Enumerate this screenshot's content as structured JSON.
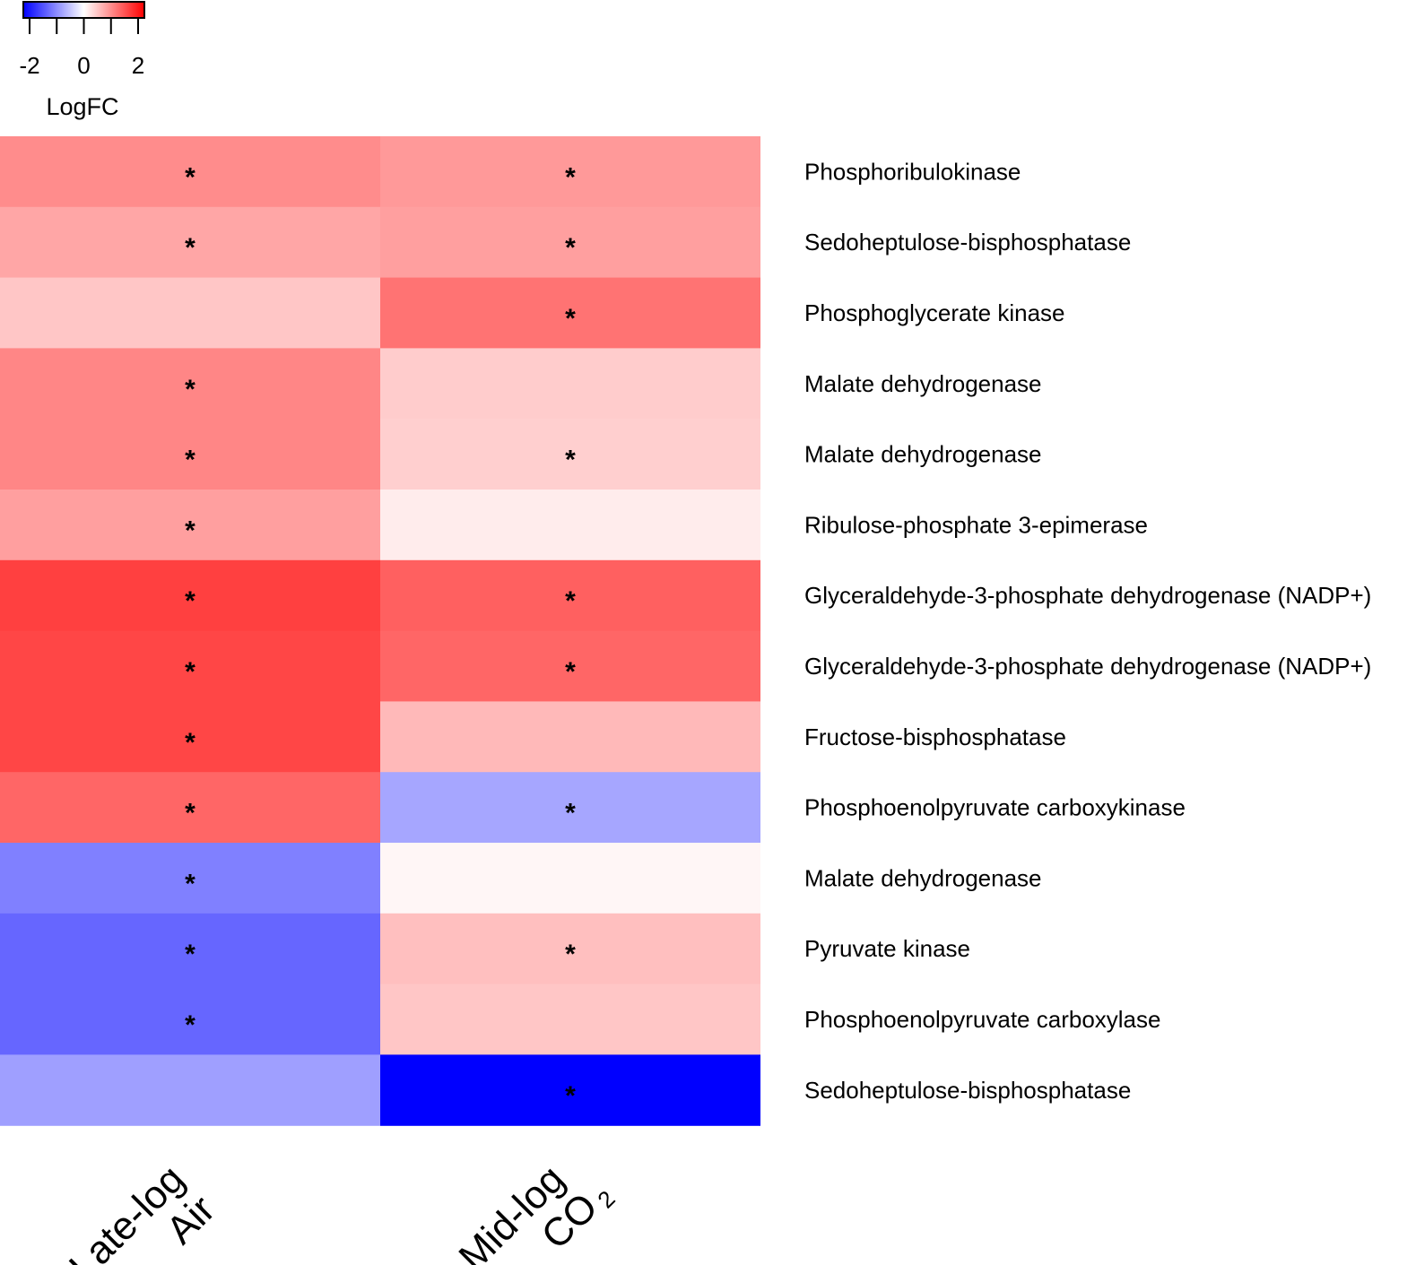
{
  "chart_data": {
    "type": "heatmap",
    "colormap": {
      "low": "#0000ff",
      "mid": "#ffffff",
      "high": "#ff0000",
      "range": [
        -2,
        2
      ]
    },
    "legend": {
      "title": "LogFC",
      "ticks": [
        -2,
        -1,
        0,
        1,
        2
      ],
      "tick_labels": [
        "-2",
        "0",
        "2"
      ],
      "tick_label_values": [
        -2,
        0,
        2
      ],
      "placement": "top-left"
    },
    "columns": [
      {
        "lines": [
          "Late-log",
          "Air"
        ]
      },
      {
        "lines": [
          "Mid-log",
          "CO"
        ],
        "subscript": "2"
      }
    ],
    "rows": [
      "Phosphoribulokinase",
      "Sedoheptulose-bisphosphatase",
      "Phosphoglycerate kinase",
      "Malate dehydrogenase",
      "Malate dehydrogenase",
      "Ribulose-phosphate 3-epimerase",
      "Glyceraldehyde-3-phosphate dehydrogenase (NADP+)",
      "Glyceraldehyde-3-phosphate dehydrogenase (NADP+)",
      "Fructose-bisphosphatase",
      "Phosphoenolpyruvate carboxykinase",
      "Malate dehydrogenase",
      "Pyruvate kinase",
      "Phosphoenolpyruvate carboxylase",
      "Sedoheptulose-bisphosphatase"
    ],
    "values": [
      [
        0.9,
        0.8
      ],
      [
        0.7,
        0.75
      ],
      [
        0.45,
        1.1
      ],
      [
        0.95,
        0.4
      ],
      [
        0.95,
        0.38
      ],
      [
        0.75,
        0.15
      ],
      [
        1.5,
        1.25
      ],
      [
        1.45,
        1.2
      ],
      [
        1.45,
        0.55
      ],
      [
        1.2,
        -0.7
      ],
      [
        -1.0,
        0.07
      ],
      [
        -1.2,
        0.5
      ],
      [
        -1.2,
        0.45
      ],
      [
        -0.75,
        -2.0
      ]
    ],
    "significance": [
      [
        true,
        true
      ],
      [
        true,
        true
      ],
      [
        false,
        true
      ],
      [
        true,
        false
      ],
      [
        true,
        true
      ],
      [
        true,
        false
      ],
      [
        true,
        true
      ],
      [
        true,
        true
      ],
      [
        true,
        false
      ],
      [
        true,
        true
      ],
      [
        true,
        false
      ],
      [
        true,
        true
      ],
      [
        true,
        false
      ],
      [
        false,
        true
      ]
    ],
    "significance_marker": "*"
  }
}
